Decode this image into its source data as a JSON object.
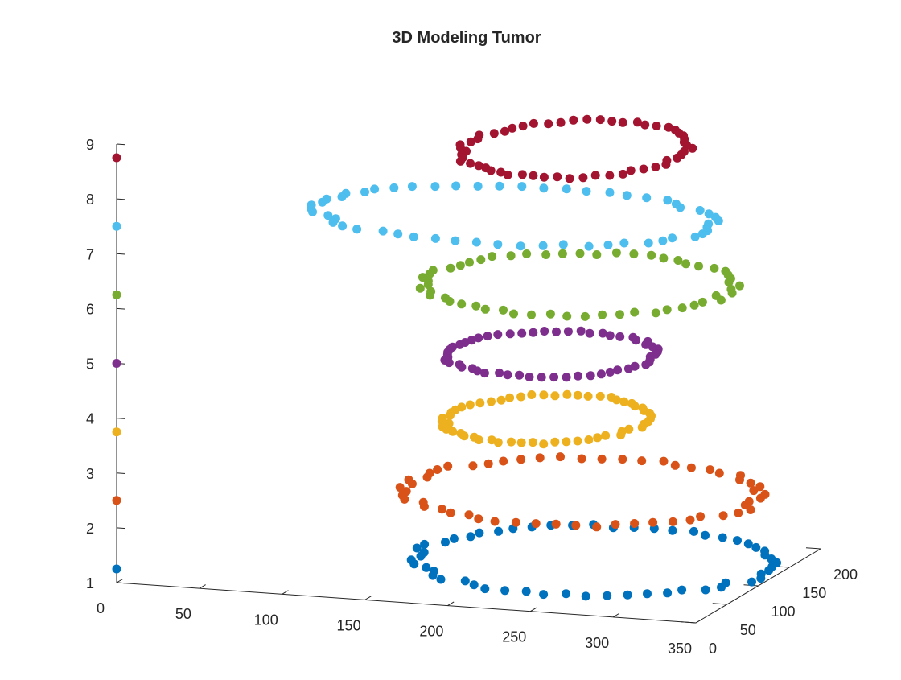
{
  "chart_data": {
    "type": "scatter3d",
    "title": "3D Modeling Tumor",
    "xlabel": "",
    "ylabel": "",
    "zlabel": "",
    "xlim": [
      0,
      350
    ],
    "ylim": [
      0,
      200
    ],
    "zlim": [
      1,
      9
    ],
    "xticks": [
      "0",
      "50",
      "100",
      "150",
      "200",
      "250",
      "300",
      "350"
    ],
    "yticks": [
      "0",
      "50",
      "100",
      "150",
      "200"
    ],
    "zticks": [
      "1",
      "2",
      "3",
      "4",
      "5",
      "6",
      "7",
      "8",
      "9"
    ],
    "grid": false,
    "legend": "none",
    "series": [
      {
        "color": "#0072BD",
        "z": 1.25,
        "ring": {
          "cx": 251,
          "cy": 101,
          "rx": 105,
          "ry": 88
        }
      },
      {
        "color": "#D95319",
        "z": 2.5,
        "ring": {
          "cx": 245,
          "cy": 99,
          "rx": 104,
          "ry": 86
        }
      },
      {
        "color": "#EDB120",
        "z": 3.75,
        "ring": {
          "cx": 221,
          "cy": 103,
          "rx": 57,
          "ry": 64
        }
      },
      {
        "color": "#7E2F8E",
        "z": 5.0,
        "ring": {
          "cx": 227,
          "cy": 96,
          "rx": 60,
          "ry": 59
        }
      },
      {
        "color": "#77AC30",
        "z": 6.25,
        "ring": {
          "cx": 240,
          "cy": 103,
          "rx": 90,
          "ry": 81
        }
      },
      {
        "color": "#4DBEEE",
        "z": 7.5,
        "ring": {
          "cx": 206,
          "cy": 93,
          "rx": 118,
          "ry": 74
        }
      },
      {
        "color": "#A2142F",
        "z": 8.75,
        "ring": {
          "cx": 240,
          "cy": 98,
          "rx": 64,
          "ry": 75
        }
      }
    ]
  }
}
